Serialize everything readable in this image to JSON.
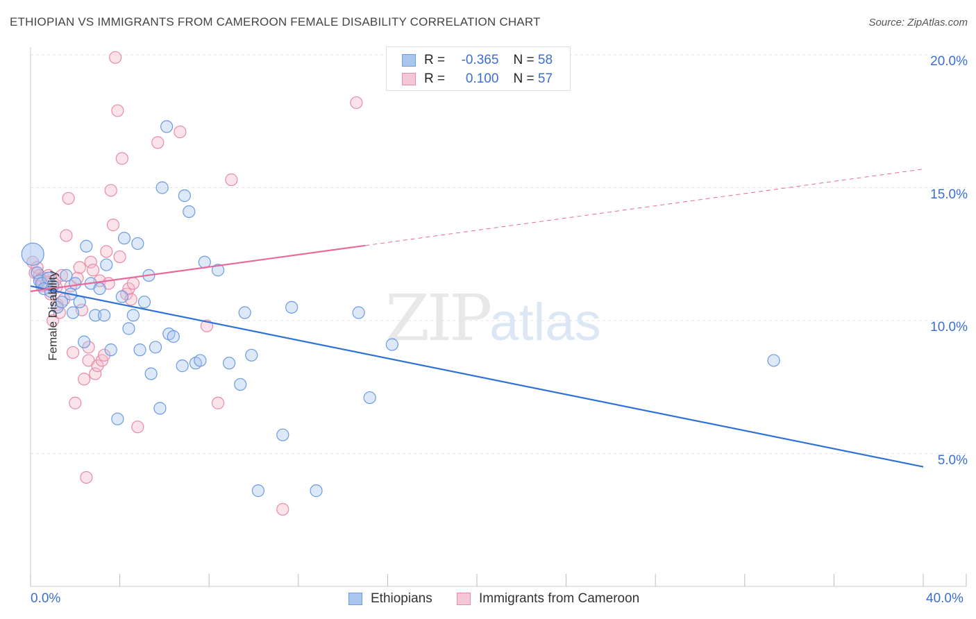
{
  "header": {
    "title": "ETHIOPIAN VS IMMIGRANTS FROM CAMEROON FEMALE DISABILITY CORRELATION CHART",
    "source": "Source: ZipAtlas.com"
  },
  "watermark": {
    "zip": "ZIP",
    "atlas": "atlas"
  },
  "legend_top": {
    "rows": [
      {
        "r_label": "R =",
        "r_value": "-0.365",
        "n_label": "N =",
        "n_value": "58"
      },
      {
        "r_label": "R =",
        "r_value": "0.100",
        "n_label": "N =",
        "n_value": "57"
      }
    ]
  },
  "legend_bottom": {
    "items": [
      "Ethiopians",
      "Immigrants from Cameroon"
    ]
  },
  "colors": {
    "blue_fill": "#a9c6ee",
    "blue_stroke": "#6b9be0",
    "blue_line": "#2f72d6",
    "pink_fill": "#f5b8cb",
    "pink_stroke": "#e98aa8",
    "pink_line": "#e8699a",
    "tick_text": "#3a6fd0"
  },
  "chart_data": {
    "type": "scatter",
    "title": "ETHIOPIAN VS IMMIGRANTS FROM CAMEROON FEMALE DISABILITY CORRELATION CHART",
    "xlabel": "",
    "ylabel": "Female Disability",
    "xlim": [
      0,
      40
    ],
    "ylim": [
      0,
      20.5
    ],
    "x_tick_labels": [
      "0.0%",
      "40.0%"
    ],
    "y_tick_labels": [
      "5.0%",
      "10.0%",
      "15.0%",
      "20.0%"
    ],
    "y_ticks": [
      5,
      10,
      15,
      20
    ],
    "grid": true,
    "legend_position": "top-center",
    "series": [
      {
        "name": "Ethiopians",
        "r": -0.365,
        "n": 58,
        "trend": {
          "x": [
            0,
            40
          ],
          "y": [
            11.3,
            4.5
          ],
          "dashed_from": null
        },
        "points": [
          [
            0.1,
            12.5
          ],
          [
            0.3,
            11.8
          ],
          [
            0.4,
            11.5
          ],
          [
            0.5,
            11.4
          ],
          [
            0.6,
            11.2
          ],
          [
            0.8,
            11.6
          ],
          [
            0.9,
            11.1
          ],
          [
            1.0,
            11.3
          ],
          [
            1.2,
            10.5
          ],
          [
            1.4,
            10.7
          ],
          [
            1.6,
            11.7
          ],
          [
            1.8,
            11.0
          ],
          [
            1.9,
            10.3
          ],
          [
            2.0,
            11.4
          ],
          [
            2.2,
            10.7
          ],
          [
            2.4,
            9.2
          ],
          [
            2.5,
            12.8
          ],
          [
            2.7,
            11.4
          ],
          [
            2.9,
            10.2
          ],
          [
            3.1,
            11.2
          ],
          [
            3.3,
            10.2
          ],
          [
            3.4,
            12.1
          ],
          [
            3.6,
            8.9
          ],
          [
            3.9,
            6.3
          ],
          [
            4.1,
            10.9
          ],
          [
            4.2,
            13.1
          ],
          [
            4.4,
            9.7
          ],
          [
            4.6,
            10.2
          ],
          [
            4.8,
            12.9
          ],
          [
            4.9,
            8.9
          ],
          [
            5.1,
            10.7
          ],
          [
            5.3,
            11.7
          ],
          [
            5.4,
            8.0
          ],
          [
            5.6,
            9.0
          ],
          [
            5.8,
            6.7
          ],
          [
            5.9,
            15.0
          ],
          [
            6.1,
            17.3
          ],
          [
            6.2,
            9.5
          ],
          [
            6.4,
            9.4
          ],
          [
            6.8,
            8.3
          ],
          [
            6.9,
            14.7
          ],
          [
            7.1,
            14.1
          ],
          [
            7.4,
            8.4
          ],
          [
            7.6,
            8.5
          ],
          [
            7.8,
            12.2
          ],
          [
            8.4,
            11.9
          ],
          [
            8.9,
            8.4
          ],
          [
            9.4,
            7.6
          ],
          [
            9.6,
            10.3
          ],
          [
            9.9,
            8.7
          ],
          [
            10.2,
            3.6
          ],
          [
            11.3,
            5.7
          ],
          [
            11.7,
            10.5
          ],
          [
            12.8,
            3.6
          ],
          [
            14.7,
            10.3
          ],
          [
            15.2,
            7.1
          ],
          [
            16.2,
            9.1
          ],
          [
            33.3,
            8.5
          ]
        ]
      },
      {
        "name": "Immigrants from Cameroon",
        "r": 0.1,
        "n": 57,
        "trend": {
          "x": [
            0,
            40
          ],
          "y": [
            11.1,
            15.7
          ],
          "dashed_from": 15
        },
        "points": [
          [
            0.1,
            12.2
          ],
          [
            0.2,
            11.8
          ],
          [
            0.3,
            12.0
          ],
          [
            0.4,
            11.7
          ],
          [
            0.5,
            11.3
          ],
          [
            0.6,
            11.6
          ],
          [
            0.7,
            11.4
          ],
          [
            0.8,
            11.7
          ],
          [
            0.9,
            11.0
          ],
          [
            1.0,
            10.0
          ],
          [
            1.1,
            11.5
          ],
          [
            1.2,
            10.6
          ],
          [
            1.3,
            10.3
          ],
          [
            1.4,
            11.7
          ],
          [
            1.5,
            10.8
          ],
          [
            1.6,
            13.2
          ],
          [
            1.7,
            14.6
          ],
          [
            1.8,
            11.3
          ],
          [
            1.9,
            8.8
          ],
          [
            2.0,
            6.9
          ],
          [
            2.1,
            11.6
          ],
          [
            2.2,
            12.0
          ],
          [
            2.3,
            10.4
          ],
          [
            2.4,
            7.8
          ],
          [
            2.5,
            4.1
          ],
          [
            2.6,
            8.5
          ],
          [
            2.6,
            9.0
          ],
          [
            2.7,
            12.2
          ],
          [
            2.8,
            11.9
          ],
          [
            2.9,
            8.0
          ],
          [
            3.0,
            8.3
          ],
          [
            3.1,
            11.5
          ],
          [
            3.2,
            8.5
          ],
          [
            3.3,
            8.7
          ],
          [
            3.4,
            12.6
          ],
          [
            3.5,
            11.4
          ],
          [
            3.6,
            14.9
          ],
          [
            3.7,
            13.6
          ],
          [
            3.8,
            19.9
          ],
          [
            3.9,
            17.9
          ],
          [
            4.0,
            12.4
          ],
          [
            4.1,
            16.1
          ],
          [
            4.3,
            11.0
          ],
          [
            4.4,
            11.2
          ],
          [
            4.5,
            10.8
          ],
          [
            4.6,
            11.4
          ],
          [
            4.8,
            6.0
          ],
          [
            5.7,
            16.7
          ],
          [
            6.7,
            17.1
          ],
          [
            7.9,
            9.8
          ],
          [
            8.4,
            6.9
          ],
          [
            9.0,
            15.3
          ],
          [
            11.3,
            2.9
          ],
          [
            14.6,
            18.2
          ],
          [
            0.45,
            11.55
          ],
          [
            0.75,
            11.45
          ],
          [
            1.15,
            11.25
          ]
        ]
      }
    ]
  }
}
